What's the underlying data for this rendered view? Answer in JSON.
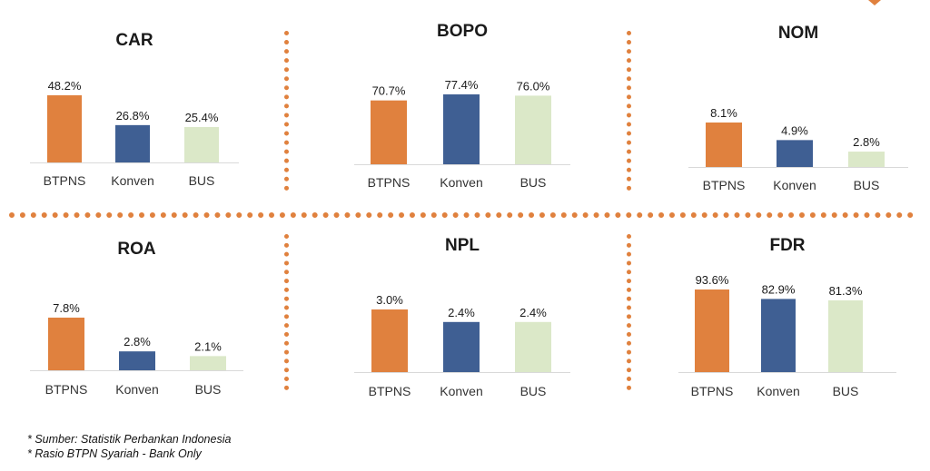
{
  "colors": {
    "BTPNS": "#e0813e",
    "Konven": "#3f5f93",
    "BUS": "#dbe8c8",
    "divider": "#e0813e"
  },
  "chart_data": [
    {
      "type": "bar",
      "title": "CAR",
      "categories": [
        "BTPNS",
        "Konven",
        "BUS"
      ],
      "values": [
        48.2,
        26.8,
        25.4
      ],
      "value_labels": [
        "48.2%",
        "26.8%",
        "25.4%"
      ]
    },
    {
      "type": "bar",
      "title": "BOPO",
      "categories": [
        "BTPNS",
        "Konven",
        "BUS"
      ],
      "values": [
        70.7,
        77.4,
        76.0
      ],
      "value_labels": [
        "70.7%",
        "77.4%",
        "76.0%"
      ]
    },
    {
      "type": "bar",
      "title": "NOM",
      "categories": [
        "BTPNS",
        "Konven",
        "BUS"
      ],
      "values": [
        8.1,
        4.9,
        2.8
      ],
      "value_labels": [
        "8.1%",
        "4.9%",
        "2.8%"
      ]
    },
    {
      "type": "bar",
      "title": "ROA",
      "categories": [
        "BTPNS",
        "Konven",
        "BUS"
      ],
      "values": [
        7.8,
        2.8,
        2.1
      ],
      "value_labels": [
        "7.8%",
        "2.8%",
        "2.1%"
      ]
    },
    {
      "type": "bar",
      "title": "NPL",
      "categories": [
        "BTPNS",
        "Konven",
        "BUS"
      ],
      "values": [
        3.0,
        2.4,
        2.4
      ],
      "value_labels": [
        "3.0%",
        "2.4%",
        "2.4%"
      ]
    },
    {
      "type": "bar",
      "title": "FDR",
      "categories": [
        "BTPNS",
        "Konven",
        "BUS"
      ],
      "values": [
        93.6,
        82.9,
        81.3
      ],
      "value_labels": [
        "93.6%",
        "82.9%",
        "81.3%"
      ]
    }
  ],
  "notes": [
    "* Sumber: Statistik Perbankan Indonesia",
    "* Rasio BTPN Syariah - Bank Only"
  ]
}
